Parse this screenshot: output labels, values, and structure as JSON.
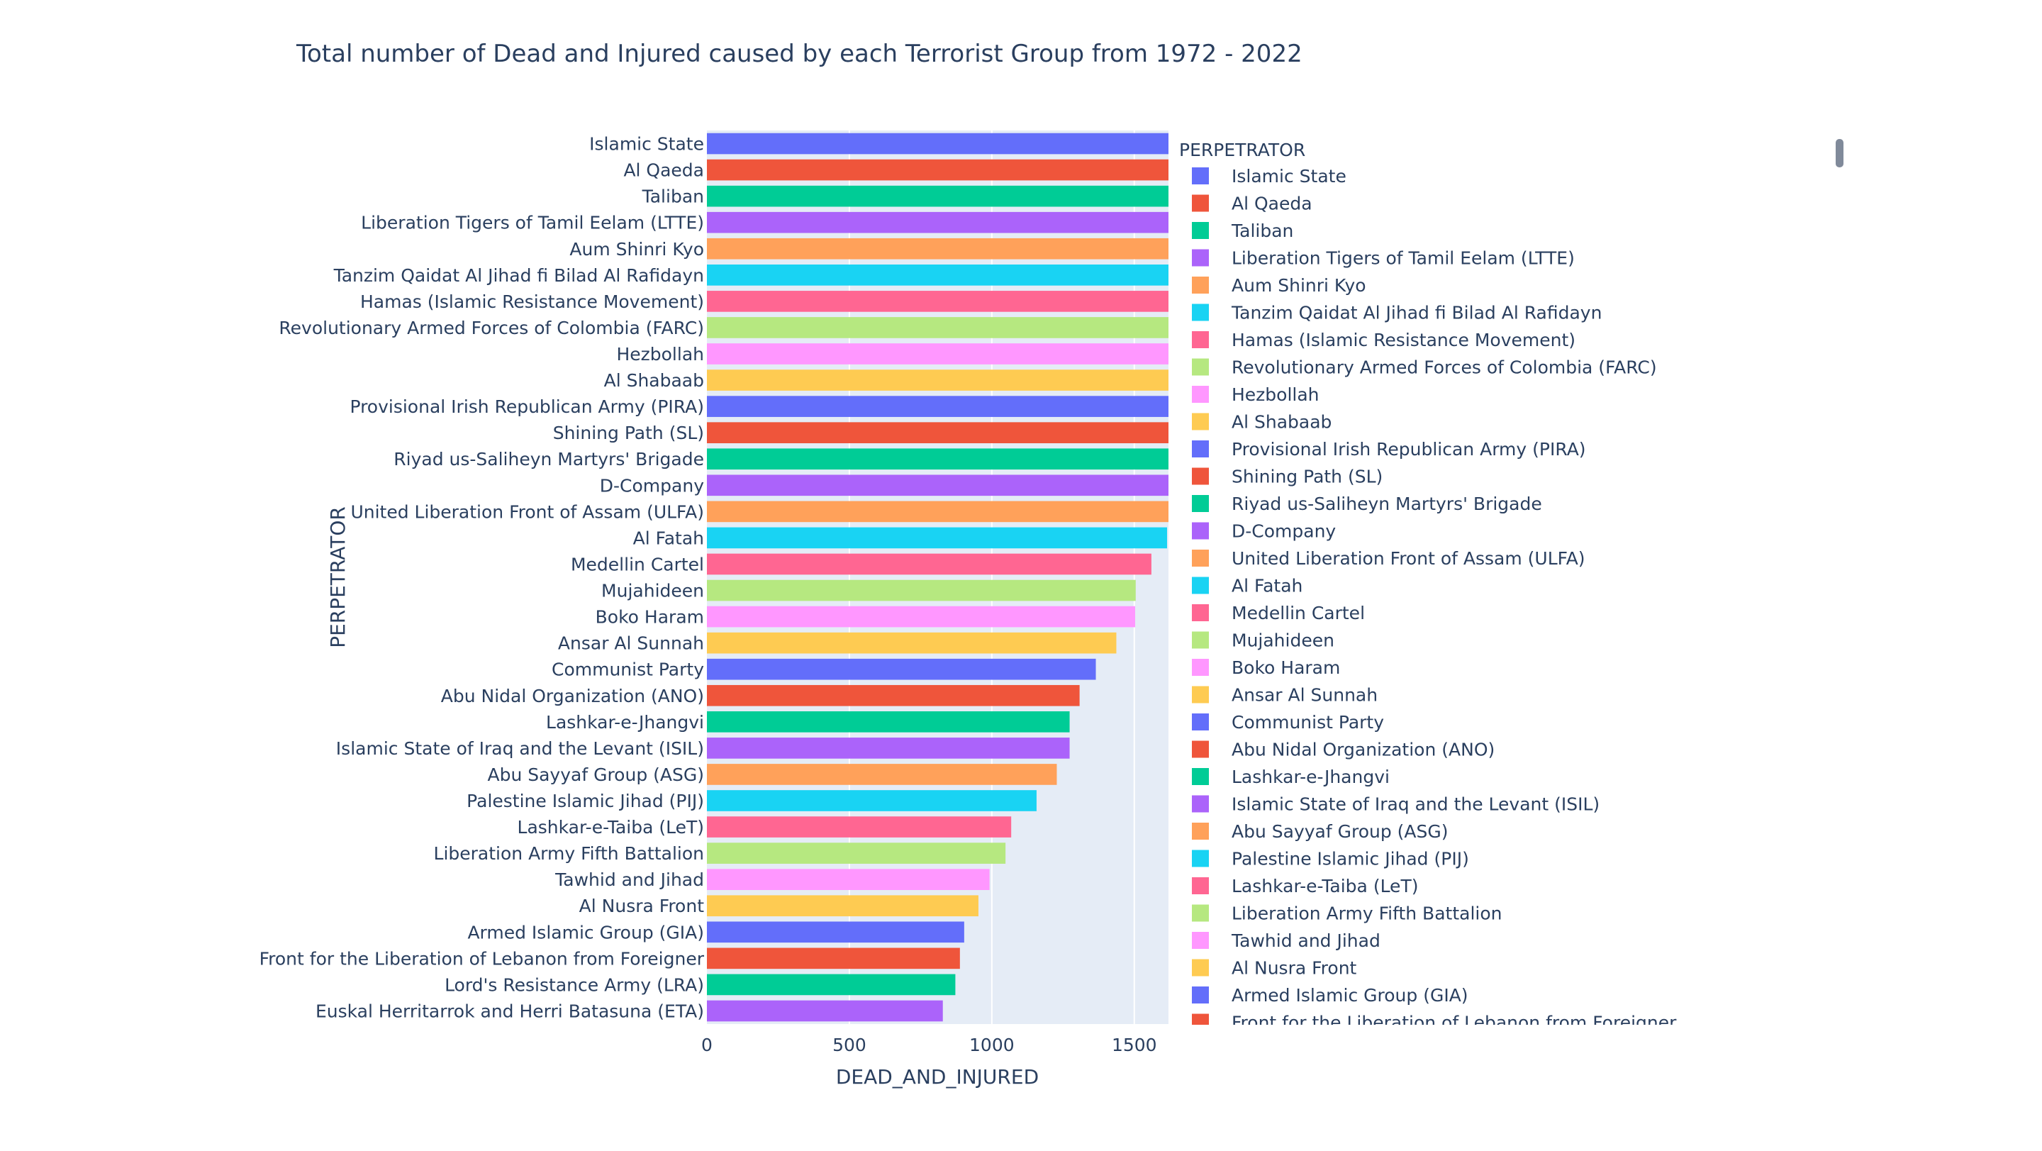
{
  "chart_data": {
    "type": "bar",
    "orientation": "horizontal",
    "title": "Total number of Dead and Injured caused by each Terrorist Group from 1972 - 2022",
    "xlabel": "DEAD_AND_INJURED",
    "ylabel": "PERPETRATOR",
    "xlim": [
      0,
      1620
    ],
    "xticks": [
      0,
      500,
      1000,
      1500
    ],
    "grid": true,
    "legend_title": "PERPETRATOR",
    "legend_placement": "right",
    "categories": [
      "Islamic State",
      "Al Qaeda",
      "Taliban",
      "Liberation Tigers of Tamil Eelam (LTTE)",
      "Aum Shinri Kyo",
      "Tanzim Qaidat Al Jihad fi Bilad Al Rafidayn",
      "Hamas (Islamic Resistance Movement)",
      "Revolutionary Armed Forces of Colombia (FARC)",
      "Hezbollah",
      "Al Shabaab",
      "Provisional Irish Republican Army (PIRA)",
      "Shining Path (SL)",
      "Riyad us-Saliheyn Martyrs' Brigade",
      "D-Company",
      "United Liberation Front of Assam (ULFA)",
      "Al Fatah",
      "Medellin Cartel",
      "Mujahideen",
      "Boko Haram",
      "Ansar Al Sunnah",
      "Communist Party",
      "Abu Nidal Organization (ANO)",
      "Lashkar-e-Jhangvi",
      "Islamic State of Iraq and the Levant (ISIL)",
      "Abu Sayyaf Group (ASG)",
      "Palestine Islamic Jihad (PIJ)",
      "Lashkar-e-Taiba (LeT)",
      "Liberation Army Fifth Battalion",
      "Tawhid and Jihad",
      "Al Nusra Front",
      "Armed Islamic Group (GIA)",
      "Front for the Liberation of Lebanon from Foreigner",
      "Lord's Resistance Army (LRA)",
      "Euskal Herritarrok and Herri Batasuna (ETA)"
    ],
    "values": [
      1620,
      1620,
      1620,
      1620,
      1620,
      1620,
      1620,
      1620,
      1620,
      1620,
      1620,
      1620,
      1620,
      1620,
      1620,
      1615,
      1560,
      1505,
      1503,
      1437,
      1365,
      1308,
      1273,
      1273,
      1228,
      1157,
      1068,
      1048,
      992,
      953,
      903,
      888,
      872,
      828
    ],
    "colors": [
      "#636efa",
      "#EF553B",
      "#00cc96",
      "#ab63fa",
      "#FFA15A",
      "#19d3f3",
      "#FF6692",
      "#B6E880",
      "#FF97FF",
      "#FECB52"
    ]
  }
}
